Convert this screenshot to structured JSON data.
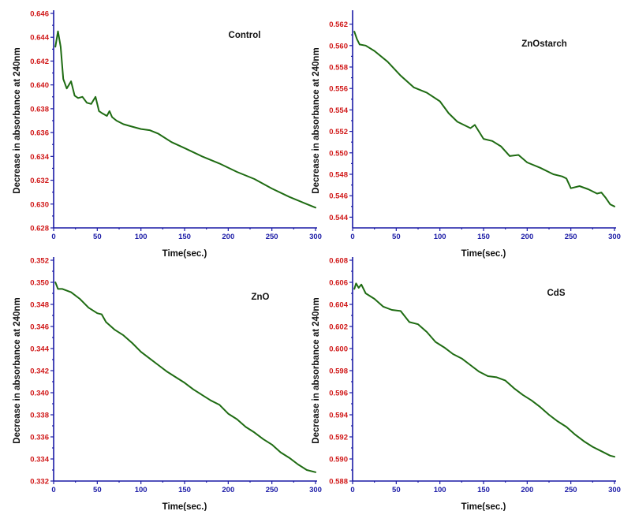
{
  "colors": {
    "axis": "#1a1aa6",
    "y_tick_text": "#d01818",
    "x_tick_text": "#1a1aa6",
    "line": "#1e6b12",
    "label_text": "#111111"
  },
  "chart_data": [
    {
      "type": "line",
      "title": "Control",
      "xlabel": "Time(sec.)",
      "ylabel": "Decrease in absorbance at 240nm",
      "xlim": [
        0,
        300
      ],
      "ylim": [
        0.628,
        0.646
      ],
      "x_ticks": [
        0,
        50,
        100,
        150,
        200,
        250,
        300
      ],
      "y_ticks": [
        "0.628",
        "0.630",
        "0.632",
        "0.634",
        "0.636",
        "0.638",
        "0.640",
        "0.642",
        "0.644",
        "0.646"
      ],
      "series": [
        {
          "name": "Control",
          "x": [
            2,
            5,
            8,
            11,
            15,
            20,
            24,
            28,
            33,
            38,
            43,
            48,
            52,
            56,
            61,
            64,
            67,
            72,
            80,
            90,
            100,
            110,
            120,
            135,
            150,
            170,
            190,
            210,
            230,
            250,
            270,
            290,
            300
          ],
          "y": [
            0.6432,
            0.6445,
            0.6432,
            0.6405,
            0.6397,
            0.6403,
            0.6391,
            0.6389,
            0.639,
            0.6385,
            0.6384,
            0.639,
            0.6378,
            0.6376,
            0.6374,
            0.6378,
            0.6373,
            0.637,
            0.6367,
            0.6365,
            0.6363,
            0.6362,
            0.6359,
            0.6352,
            0.6347,
            0.634,
            0.6334,
            0.6327,
            0.6321,
            0.6313,
            0.6306,
            0.63,
            0.6297
          ]
        }
      ]
    },
    {
      "type": "line",
      "title": "ZnOstarch",
      "xlabel": "Time(sec.)",
      "ylabel": "Decrease in absorbance at 240nm",
      "xlim": [
        0,
        300
      ],
      "ylim": [
        0.543,
        0.563
      ],
      "x_ticks": [
        0,
        50,
        100,
        150,
        200,
        250,
        300
      ],
      "y_ticks": [
        "0.544",
        "0.546",
        "0.548",
        "0.550",
        "0.552",
        "0.554",
        "0.556",
        "0.558",
        "0.560",
        "0.562"
      ],
      "series": [
        {
          "name": "ZnOstarch",
          "x": [
            2,
            5,
            8,
            15,
            25,
            40,
            55,
            70,
            85,
            100,
            110,
            120,
            135,
            140,
            150,
            160,
            170,
            180,
            190,
            200,
            215,
            230,
            240,
            245,
            250,
            260,
            270,
            280,
            285,
            290,
            295,
            300
          ],
          "y": [
            0.5613,
            0.5606,
            0.5601,
            0.56,
            0.5595,
            0.5585,
            0.5572,
            0.5561,
            0.5556,
            0.5548,
            0.5537,
            0.5529,
            0.5523,
            0.5526,
            0.5513,
            0.5511,
            0.5506,
            0.5497,
            0.5498,
            0.5491,
            0.5486,
            0.548,
            0.5478,
            0.5476,
            0.5467,
            0.5469,
            0.5466,
            0.5462,
            0.5463,
            0.5458,
            0.5452,
            0.545
          ]
        }
      ]
    },
    {
      "type": "line",
      "title": "ZnO",
      "xlabel": "Time(sec.)",
      "ylabel": "Decrease in absorbance at 240nm",
      "xlim": [
        0,
        300
      ],
      "ylim": [
        0.332,
        0.352
      ],
      "x_ticks": [
        0,
        50,
        100,
        150,
        200,
        250,
        300
      ],
      "y_ticks": [
        "0.332",
        "0.334",
        "0.336",
        "0.338",
        "0.340",
        "0.342",
        "0.344",
        "0.346",
        "0.348",
        "0.350",
        "0.352"
      ],
      "series": [
        {
          "name": "ZnO",
          "x": [
            2,
            5,
            10,
            20,
            30,
            40,
            50,
            55,
            60,
            70,
            80,
            90,
            100,
            110,
            120,
            130,
            140,
            150,
            160,
            170,
            180,
            190,
            200,
            210,
            220,
            230,
            240,
            250,
            260,
            270,
            280,
            290,
            300
          ],
          "y": [
            0.35,
            0.3494,
            0.3494,
            0.3491,
            0.3485,
            0.3477,
            0.3472,
            0.3471,
            0.3464,
            0.3457,
            0.3452,
            0.3445,
            0.3437,
            0.3431,
            0.3425,
            0.3419,
            0.3414,
            0.3409,
            0.3403,
            0.3398,
            0.3393,
            0.3389,
            0.3381,
            0.3376,
            0.3369,
            0.3364,
            0.3358,
            0.3353,
            0.3346,
            0.3341,
            0.3335,
            0.333,
            0.3328
          ]
        }
      ]
    },
    {
      "type": "line",
      "title": "CdS",
      "xlabel": "Time(sec.)",
      "ylabel": "Decrease in absorbance at 240nm",
      "xlim": [
        0,
        300
      ],
      "ylim": [
        0.588,
        0.608
      ],
      "x_ticks": [
        0,
        50,
        100,
        150,
        200,
        250,
        300
      ],
      "y_ticks": [
        "0.588",
        "0.590",
        "0.592",
        "0.594",
        "0.596",
        "0.598",
        "0.600",
        "0.602",
        "0.604",
        "0.606",
        "0.608"
      ],
      "series": [
        {
          "name": "CdS",
          "x": [
            2,
            4,
            7,
            10,
            15,
            25,
            35,
            45,
            55,
            65,
            75,
            85,
            95,
            105,
            115,
            125,
            135,
            145,
            155,
            165,
            175,
            185,
            195,
            205,
            215,
            225,
            235,
            245,
            255,
            265,
            275,
            285,
            295,
            300
          ],
          "y": [
            0.6054,
            0.6059,
            0.6055,
            0.6058,
            0.605,
            0.6045,
            0.6038,
            0.6035,
            0.6034,
            0.6024,
            0.6022,
            0.6015,
            0.6006,
            0.6001,
            0.5995,
            0.5991,
            0.5985,
            0.5979,
            0.5975,
            0.5974,
            0.5971,
            0.5964,
            0.5958,
            0.5953,
            0.5947,
            0.594,
            0.5934,
            0.5929,
            0.5922,
            0.5916,
            0.5911,
            0.5907,
            0.5903,
            0.5902
          ]
        }
      ]
    }
  ]
}
